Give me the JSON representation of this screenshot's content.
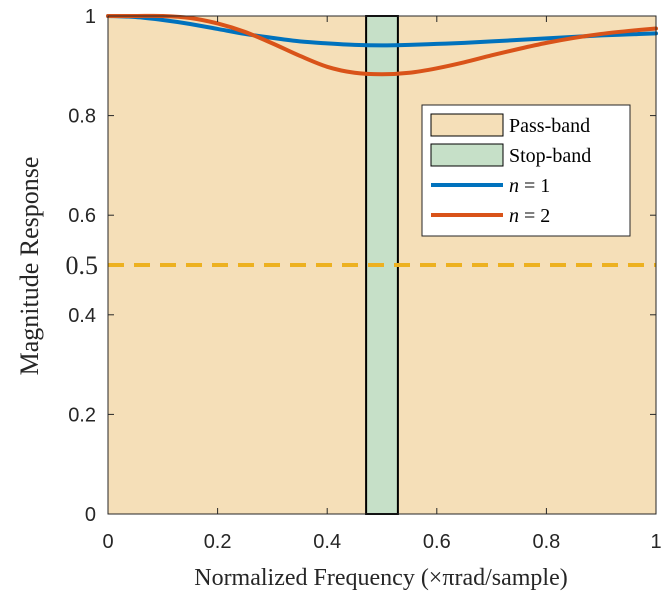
{
  "chart_data": {
    "type": "line",
    "xlabel": "Normalized Frequency (×πrad/sample)",
    "ylabel": "Magnitude Response",
    "xlim": [
      0,
      1
    ],
    "ylim": [
      0,
      1
    ],
    "x_ticks": [
      "0",
      "0.2",
      "0.4",
      "0.6",
      "0.8",
      "1"
    ],
    "y_ticks": [
      "0",
      "0.2",
      "0.4",
      "0.6",
      "0.8",
      "1"
    ],
    "grid": false,
    "legend_position": "right",
    "regions": [
      {
        "name": "Pass-band",
        "x_ranges": [
          [
            0,
            0.471
          ],
          [
            0.529,
            1
          ]
        ],
        "color": "#f5dfb8"
      },
      {
        "name": "Stop-band",
        "x_ranges": [
          [
            0.471,
            0.529
          ]
        ],
        "color": "#c6e0c8"
      }
    ],
    "reference_line": {
      "y": 0.5,
      "label": "0.5",
      "color": "#edb120",
      "style": "dashed"
    },
    "series": [
      {
        "name": "n = 1",
        "color": "#0072bd",
        "x": [
          0,
          0.05,
          0.1,
          0.15,
          0.2,
          0.25,
          0.3,
          0.35,
          0.4,
          0.45,
          0.5,
          0.55,
          0.6,
          0.65,
          0.7,
          0.75,
          0.8,
          0.85,
          0.9,
          0.95,
          1
        ],
        "y": [
          1.0,
          0.998,
          0.992,
          0.984,
          0.974,
          0.964,
          0.956,
          0.949,
          0.945,
          0.942,
          0.941,
          0.942,
          0.944,
          0.946,
          0.949,
          0.952,
          0.955,
          0.958,
          0.961,
          0.963,
          0.965
        ]
      },
      {
        "name": "n = 2",
        "color": "#d95319",
        "x": [
          0,
          0.05,
          0.1,
          0.15,
          0.2,
          0.25,
          0.3,
          0.35,
          0.4,
          0.45,
          0.5,
          0.55,
          0.6,
          0.65,
          0.7,
          0.75,
          0.8,
          0.85,
          0.9,
          0.95,
          1
        ],
        "y": [
          1.0,
          1.0,
          1.0,
          0.996,
          0.985,
          0.968,
          0.945,
          0.92,
          0.898,
          0.886,
          0.883,
          0.886,
          0.895,
          0.907,
          0.921,
          0.934,
          0.946,
          0.956,
          0.964,
          0.97,
          0.975
        ]
      }
    ]
  }
}
